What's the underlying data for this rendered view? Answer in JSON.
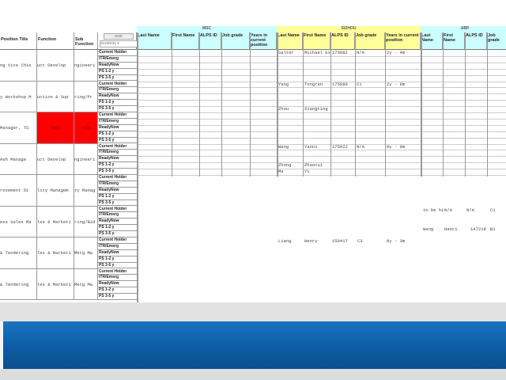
{
  "colors": {
    "msc_header": "#ccffff",
    "sizhou_header": "#ffff99",
    "abp_header": "#ccffff",
    "highlight": "#ff0000",
    "banner": "#0c5aa0"
  },
  "left_headers": [
    "Position Title",
    "Function",
    "Sub Function"
  ],
  "filter": {
    "button_label": "END",
    "date_value": "2015/5/31"
  },
  "groups": [
    {
      "label": "MSC",
      "columns": [
        "Last Name",
        "First Name",
        "ALPS ID",
        "Job grade",
        "Years in current position"
      ]
    },
    {
      "label": "SIZHOU",
      "columns": [
        "Last Name",
        "First Name",
        "ALPS ID",
        "Job grade",
        "Years in current position"
      ]
    },
    {
      "label": "ABP",
      "columns": [
        "Last Name",
        "First Name",
        "ALPS ID",
        "Job grade"
      ]
    }
  ],
  "status_rows": [
    "Current Holder",
    "ITR/Emerg",
    "ReadyNow",
    "PS 1-2 y",
    "PS 3-5 y"
  ],
  "positions": [
    {
      "title": "ng Vice Chie",
      "function": "uct Develop",
      "sub": "ngineeri",
      "highlight": false
    },
    {
      "title": "y Workshop M",
      "function": "uction & Sup",
      "sub": "ring/Pr",
      "highlight": false
    },
    {
      "title": "Manager, TS",
      "function": "N/A",
      "sub": "N/A",
      "highlight": true
    },
    {
      "title": "Ash Manage",
      "function": "uct Develop",
      "sub": "ngineeri",
      "highlight": false
    },
    {
      "title": "rovement Di",
      "function": "lity Managem",
      "sub": "ty Manag",
      "highlight": false
    },
    {
      "title": "ess Sales Ma",
      "function": "les & Marketi",
      "sub": "ring/Bid",
      "highlight": false
    },
    {
      "title": "& Tendering",
      "function": "les & Marketi",
      "sub": "Mktg Ma",
      "highlight": false
    },
    {
      "title": "& Tendering",
      "function": "les & Marketi",
      "sub": "Mktg Ma",
      "highlight": false
    }
  ],
  "entries": [
    {
      "group": 0,
      "row": 0,
      "col": 1,
      "values": [
        "Salter",
        "Michael Ex",
        "175082",
        "N/A",
        "2y - 4m"
      ]
    },
    {
      "group": 1,
      "row": 0,
      "col": 1,
      "values": [
        "Yang",
        "Tongren",
        "175089",
        "C1",
        "2y - 8m"
      ]
    },
    {
      "group": 1,
      "row": 4,
      "col": 1,
      "values": [
        "Zhou",
        "Xiangting"
      ]
    },
    {
      "group": 3,
      "row": 0,
      "col": 1,
      "values": [
        "Wang",
        "Yanni",
        "175022",
        "N/A",
        "0y - 9m"
      ]
    },
    {
      "group": 3,
      "row": 3,
      "col": 1,
      "values": [
        "Zhong",
        "Zhaocui"
      ]
    },
    {
      "group": 3,
      "row": 4,
      "col": 1,
      "values": [
        "Ma",
        "Yi"
      ]
    }
  ],
  "loose_text": [
    {
      "values": [
        "to be hi",
        "N/A",
        "N/A",
        "C1"
      ]
    },
    {
      "values": [
        "Wang",
        "Haori",
        "147218",
        "B1"
      ]
    },
    {
      "values": [
        "Liang",
        "Henry",
        "159417",
        "C3",
        "0y - 3m"
      ]
    }
  ]
}
